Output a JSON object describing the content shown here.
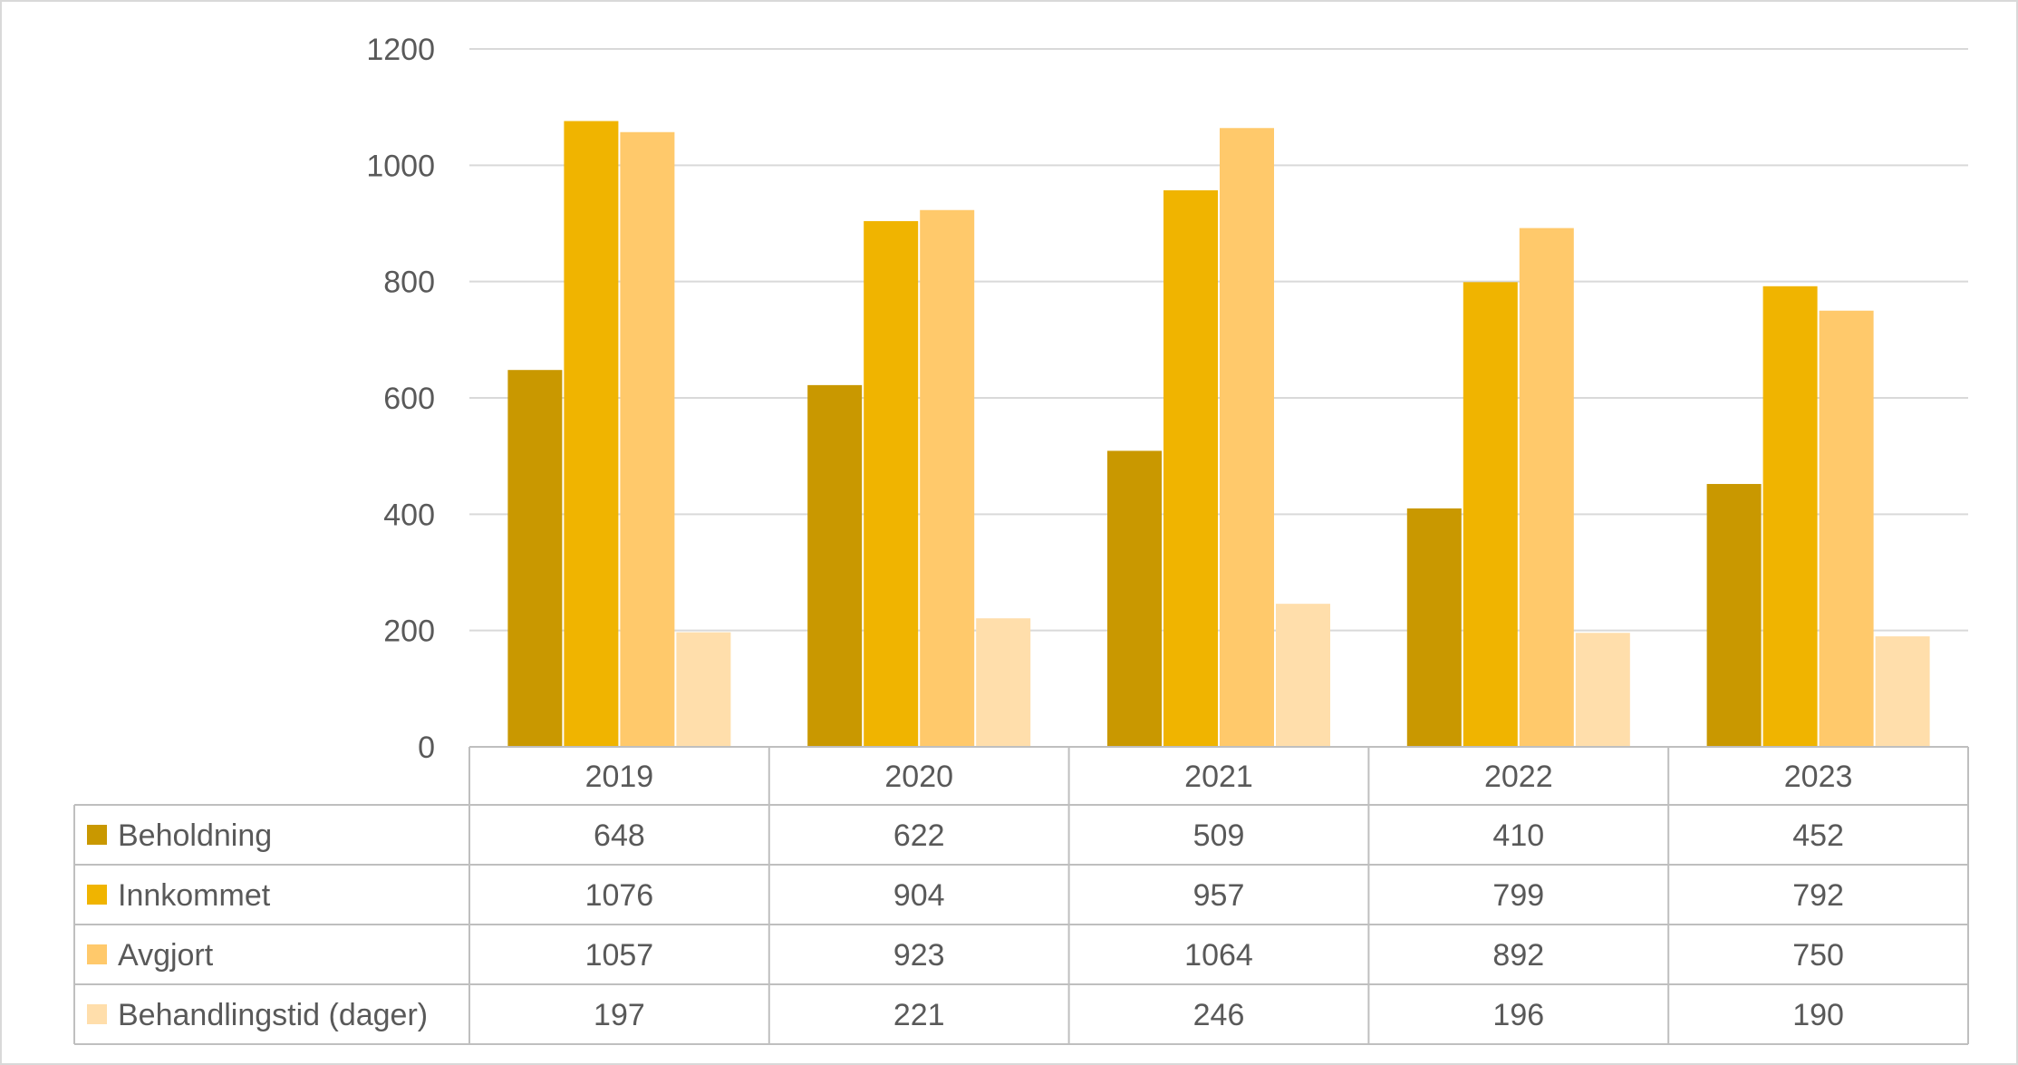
{
  "chart_data": {
    "type": "bar",
    "title": "",
    "xlabel": "",
    "ylabel": "",
    "ylim": [
      0,
      1200
    ],
    "yticks": [
      0,
      200,
      400,
      600,
      800,
      1000,
      1200
    ],
    "grid": true,
    "legend_placement": "data-table-left",
    "categories": [
      "2019",
      "2020",
      "2021",
      "2022",
      "2023"
    ],
    "series": [
      {
        "name": "Beholdning",
        "color": "#c99800",
        "values": [
          648,
          622,
          509,
          410,
          452
        ]
      },
      {
        "name": "Innkommet",
        "color": "#f0b400",
        "values": [
          1076,
          904,
          957,
          799,
          792
        ]
      },
      {
        "name": "Avgjort",
        "color": "#ffc96b",
        "values": [
          1057,
          923,
          1064,
          892,
          750
        ]
      },
      {
        "name": "Behandlingstid (dager)",
        "color": "#ffdeab",
        "values": [
          197,
          221,
          246,
          196,
          190
        ]
      }
    ]
  }
}
